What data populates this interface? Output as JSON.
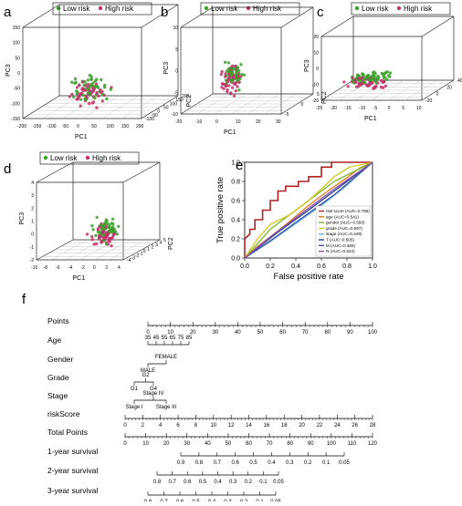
{
  "panel_letters": [
    "a",
    "b",
    "c",
    "d",
    "e",
    "f"
  ],
  "pca_legend": {
    "low": "Low risk",
    "high": "High risk",
    "low_color": "#3aa02a",
    "high_color": "#c2336b"
  },
  "pca_panels": [
    {
      "letter": "a",
      "xlabel": "PC1",
      "ylabel": "PC3",
      "zlabel": "PC2",
      "x_ticks": [
        "-200",
        "-150",
        "-100",
        "-50",
        "0",
        "50",
        "100",
        "150",
        "200"
      ],
      "y_ticks": [
        "-150",
        "-100",
        "-50",
        "0",
        "50",
        "100",
        "150"
      ],
      "z_ticks": [
        "-100",
        "-50",
        "0",
        "50",
        "100",
        "150",
        "200"
      ]
    },
    {
      "letter": "b",
      "xlabel": "PC1",
      "ylabel": "PC3",
      "zlabel": "PC2",
      "x_ticks": [
        "-20",
        "-10",
        "0",
        "10",
        "20",
        "30"
      ],
      "y_ticks": [
        "-10",
        "-5",
        "0",
        "5",
        "10"
      ],
      "z_ticks": [
        "-5",
        "0",
        "5"
      ]
    },
    {
      "letter": "c",
      "xlabel": "PC1",
      "ylabel": "PC3",
      "zlabel": "PC2",
      "x_ticks": [
        "-25",
        "-20",
        "-15",
        "-10",
        "-5",
        "0",
        "5",
        "10"
      ],
      "y_ticks": [
        "-20",
        "-10",
        "0",
        "10",
        "20"
      ],
      "z_ticks": [
        "-20",
        "0",
        "20",
        "40"
      ]
    },
    {
      "letter": "d",
      "xlabel": "PC1",
      "ylabel": "PC3",
      "zlabel": "PC2",
      "x_ticks": [
        "-10",
        "-8",
        "-6",
        "-4",
        "-2",
        "0",
        "2",
        "4"
      ],
      "y_ticks": [
        "-2",
        "-1",
        "0",
        "1",
        "2",
        "3",
        "4"
      ],
      "z_ticks": [
        "-4",
        "-3",
        "-2",
        "-1",
        "0",
        "1",
        "2",
        "3",
        "4",
        "5"
      ]
    }
  ],
  "chart_data": {
    "type": "line",
    "panel": "e",
    "xlabel": "False positive rate",
    "ylabel": "True positive rate",
    "xlim": [
      0,
      1
    ],
    "ylim": [
      0,
      1
    ],
    "ticks": [
      "0.0",
      "0.2",
      "0.4",
      "0.6",
      "0.8",
      "1.0"
    ],
    "legend_position": "bottom-right",
    "series": [
      {
        "name": "risk score (AUC=0.785)",
        "color": "#b22222",
        "points": [
          [
            0,
            0
          ],
          [
            0,
            0.2
          ],
          [
            0.04,
            0.25
          ],
          [
            0.04,
            0.3
          ],
          [
            0.08,
            0.3
          ],
          [
            0.08,
            0.4
          ],
          [
            0.14,
            0.4
          ],
          [
            0.14,
            0.5
          ],
          [
            0.2,
            0.5
          ],
          [
            0.2,
            0.6
          ],
          [
            0.26,
            0.6
          ],
          [
            0.26,
            0.7
          ],
          [
            0.32,
            0.7
          ],
          [
            0.32,
            0.75
          ],
          [
            0.42,
            0.75
          ],
          [
            0.42,
            0.8
          ],
          [
            0.5,
            0.8
          ],
          [
            0.5,
            0.85
          ],
          [
            0.6,
            0.85
          ],
          [
            0.6,
            0.95
          ],
          [
            0.68,
            0.95
          ],
          [
            0.68,
            1.0
          ],
          [
            1,
            1
          ]
        ]
      },
      {
        "name": "age (AUC=0.541)",
        "color": "#e07b20",
        "points": [
          [
            0,
            0
          ],
          [
            0.1,
            0.12
          ],
          [
            0.2,
            0.22
          ],
          [
            0.35,
            0.38
          ],
          [
            0.5,
            0.55
          ],
          [
            0.65,
            0.7
          ],
          [
            0.8,
            0.84
          ],
          [
            0.9,
            0.94
          ],
          [
            1,
            1
          ]
        ]
      },
      {
        "name": "gender (AUC=0.593)",
        "color": "#7db52a",
        "points": [
          [
            0,
            0
          ],
          [
            0.1,
            0.15
          ],
          [
            0.2,
            0.3
          ],
          [
            0.3,
            0.4
          ],
          [
            0.45,
            0.55
          ],
          [
            0.6,
            0.7
          ],
          [
            0.7,
            0.8
          ],
          [
            0.85,
            0.9
          ],
          [
            1,
            1
          ]
        ]
      },
      {
        "name": "grade (AUC=0.597)",
        "color": "#d4c51f",
        "points": [
          [
            0,
            0
          ],
          [
            0.05,
            0.1
          ],
          [
            0.1,
            0.2
          ],
          [
            0.2,
            0.35
          ],
          [
            0.35,
            0.45
          ],
          [
            0.5,
            0.6
          ],
          [
            0.6,
            0.72
          ],
          [
            0.7,
            0.85
          ],
          [
            0.82,
            0.95
          ],
          [
            1,
            1
          ]
        ]
      },
      {
        "name": "stage (AUC=0.449)",
        "color": "#6fb4d8",
        "points": [
          [
            0,
            0
          ],
          [
            0.2,
            0.17
          ],
          [
            0.4,
            0.36
          ],
          [
            0.6,
            0.55
          ],
          [
            0.8,
            0.76
          ],
          [
            1,
            1
          ]
        ]
      },
      {
        "name": "T (AUC=0.505)",
        "color": "#2a3f8f",
        "points": [
          [
            0,
            0
          ],
          [
            0.25,
            0.26
          ],
          [
            0.5,
            0.5
          ],
          [
            0.75,
            0.75
          ],
          [
            1,
            1
          ]
        ]
      },
      {
        "name": "M (AUC=0.466)",
        "color": "#3b52b0",
        "points": [
          [
            0,
            0
          ],
          [
            0.2,
            0.18
          ],
          [
            0.45,
            0.42
          ],
          [
            0.7,
            0.66
          ],
          [
            1,
            1
          ]
        ]
      },
      {
        "name": "N (AUC=0.522)",
        "color": "#8e4ea6",
        "points": [
          [
            0,
            0
          ],
          [
            0.2,
            0.22
          ],
          [
            0.45,
            0.47
          ],
          [
            0.7,
            0.72
          ],
          [
            1,
            1
          ]
        ]
      }
    ]
  },
  "nomogram": {
    "letter": "f",
    "rows": [
      {
        "label": "Points",
        "ticks": [
          "0",
          "10",
          "20",
          "30",
          "40",
          "50",
          "60",
          "70",
          "80",
          "90",
          "100"
        ]
      },
      {
        "label": "Age",
        "ticks": [
          "35",
          "45",
          "55",
          "65",
          "75",
          "85"
        ]
      },
      {
        "label": "Gender",
        "ticks": [
          "MALE",
          "FEMALE"
        ]
      },
      {
        "label": "Grade",
        "ticks": [
          "G1",
          "G2",
          "G4"
        ]
      },
      {
        "label": "Stage",
        "ticks": [
          "Stage I",
          "Stage IV",
          "Stage III"
        ]
      },
      {
        "label": "riskScore",
        "ticks": [
          "0",
          "2",
          "4",
          "6",
          "8",
          "10",
          "12",
          "14",
          "16",
          "18",
          "20",
          "22",
          "24",
          "26",
          "28"
        ]
      },
      {
        "label": "Total Points",
        "ticks": [
          "0",
          "10",
          "20",
          "30",
          "40",
          "50",
          "60",
          "70",
          "80",
          "90",
          "100",
          "110",
          "120"
        ]
      },
      {
        "label": "1-year survival",
        "ticks": [
          "0.9",
          "0.8",
          "0.7",
          "0.6",
          "0.5",
          "0.4",
          "0.3",
          "0.2",
          "0.1",
          "0.05"
        ]
      },
      {
        "label": "2-year survival",
        "ticks": [
          "0.8",
          "0.7",
          "0.6",
          "0.5",
          "0.4",
          "0.3",
          "0.2",
          "0.1",
          "0.05"
        ]
      },
      {
        "label": "3-year survival",
        "ticks": [
          "0.8",
          "0.7",
          "0.6",
          "0.5",
          "0.4",
          "0.3",
          "0.2",
          "0.1",
          "0.05"
        ]
      }
    ]
  }
}
